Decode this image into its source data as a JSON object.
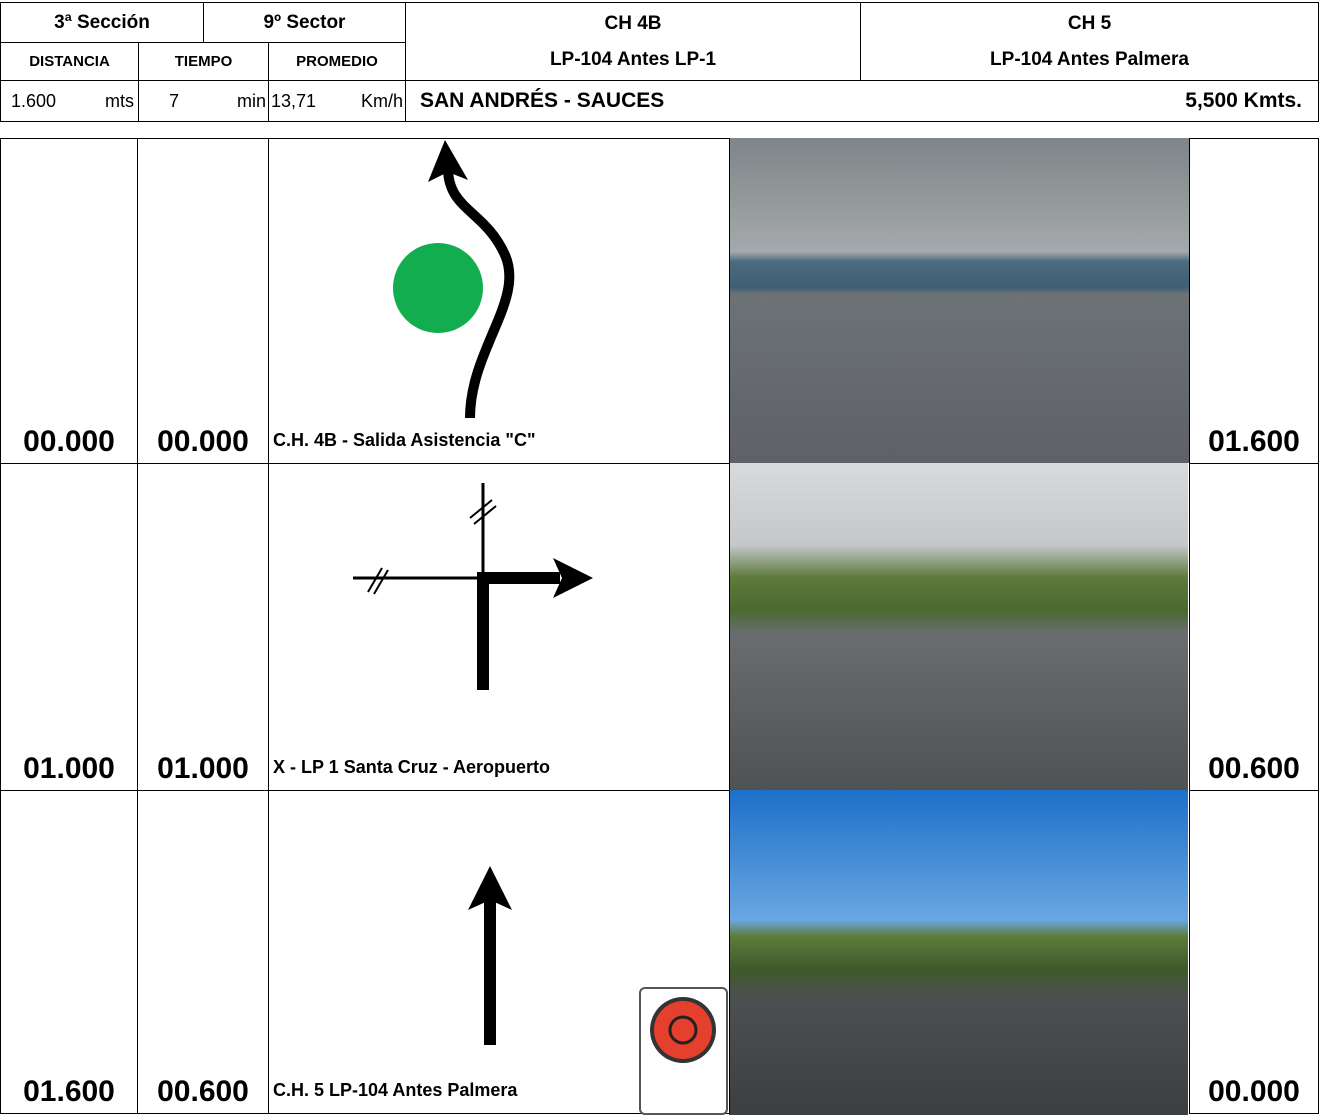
{
  "header": {
    "section": "3ª Sección",
    "sector": "9º Sector",
    "labels": {
      "distance": "DISTANCIA",
      "time": "TIEMPO",
      "average": "PROMEDIO"
    },
    "control_start": {
      "title": "CH 4B",
      "subtitle": "LP-104 Antes LP-1"
    },
    "control_end": {
      "title": "CH 5",
      "subtitle": "LP-104 Antes Palmera"
    },
    "distance": {
      "value": "1.600",
      "unit": "mts"
    },
    "time": {
      "value": "7",
      "unit": "min"
    },
    "average": {
      "value": "13,71",
      "unit": "Km/h"
    },
    "stage": "SAN ANDRÉS - SAUCES",
    "stage_length": "5,500 Kmts."
  },
  "rows": [
    {
      "total": "00.000",
      "partial": "00.000",
      "caption": "C.H. 4B - Salida Asistencia \"C\"",
      "remaining": "01.600"
    },
    {
      "total": "01.000",
      "partial": "01.000",
      "caption": "X - LP 1 Santa Cruz - Aeropuerto",
      "remaining": "00.600"
    },
    {
      "total": "01.600",
      "partial": "00.600",
      "caption": "C.H. 5 LP-104 Antes Palmera",
      "remaining": "00.000"
    }
  ]
}
